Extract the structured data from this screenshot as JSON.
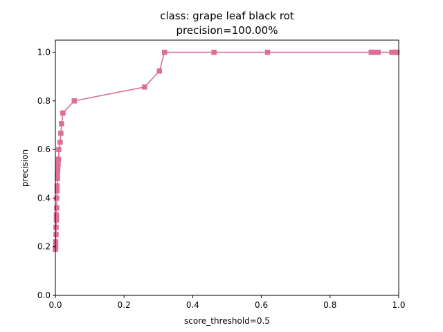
{
  "chart_data": {
    "type": "line",
    "title_lines": [
      "class: grape leaf black rot",
      "precision=100.00%"
    ],
    "xlabel": "score_threshold=0.5",
    "ylabel": "precision",
    "xlim": [
      0,
      1
    ],
    "ylim": [
      0,
      1.05
    ],
    "xticks": [
      0.0,
      0.2,
      0.4,
      0.6,
      0.8,
      1.0
    ],
    "yticks": [
      0.0,
      0.2,
      0.4,
      0.6,
      0.8,
      1.0
    ],
    "xtick_labels": [
      "0.0",
      "0.2",
      "0.4",
      "0.6",
      "0.8",
      "1.0"
    ],
    "ytick_labels": [
      "0.0",
      "0.2",
      "0.4",
      "0.6",
      "0.8",
      "1.0"
    ],
    "grid": false,
    "color": "#dd6e97",
    "marker": "square",
    "series": [
      {
        "x": [
          0.0,
          0.001,
          0.001,
          0.002,
          0.002,
          0.003,
          0.003,
          0.004,
          0.004,
          0.005,
          0.005,
          0.006,
          0.006,
          0.007,
          0.008,
          0.009,
          0.01,
          0.014,
          0.016,
          0.018,
          0.022,
          0.055,
          0.26,
          0.303,
          0.318,
          0.462,
          0.618,
          0.92,
          0.928,
          0.94,
          0.98,
          0.986,
          0.99,
          0.995
        ],
        "y": [
          0.19,
          0.2,
          0.22,
          0.25,
          0.28,
          0.31,
          0.33,
          0.36,
          0.4,
          0.43,
          0.45,
          0.48,
          0.5,
          0.52,
          0.54,
          0.56,
          0.6,
          0.63,
          0.667,
          0.706,
          0.75,
          0.8,
          0.857,
          0.923,
          1.0,
          1.0,
          1.0,
          1.0,
          1.0,
          1.0,
          1.0,
          1.0,
          1.0,
          1.0
        ]
      }
    ]
  }
}
